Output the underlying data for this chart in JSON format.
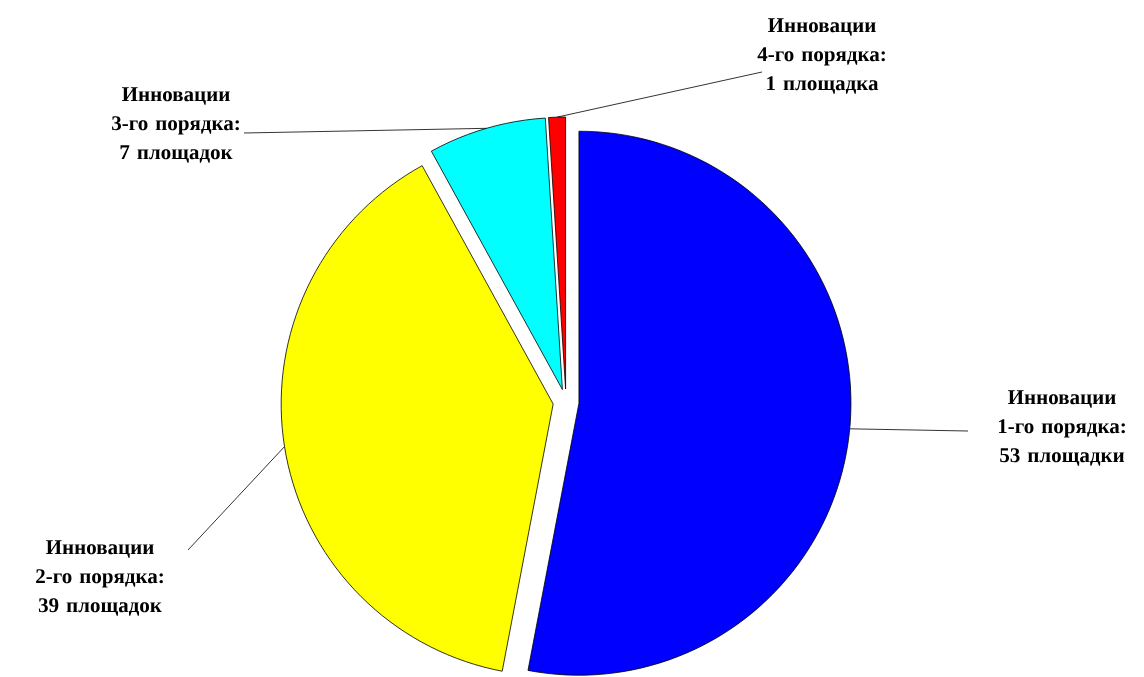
{
  "chart_data": {
    "type": "pie",
    "categories": [
      "Инновации 1-го порядка: 53 площадки",
      "Инновации 2-го порядка: 39 площадок",
      "Инновации 3-го порядка: 7 площадок",
      "Инновации 4-го порядка: 1 площадка"
    ],
    "values": [
      53,
      39,
      7,
      1
    ],
    "colors": [
      "#0000ff",
      "#ffff00",
      "#00ffff",
      "#ff0000"
    ]
  }
}
